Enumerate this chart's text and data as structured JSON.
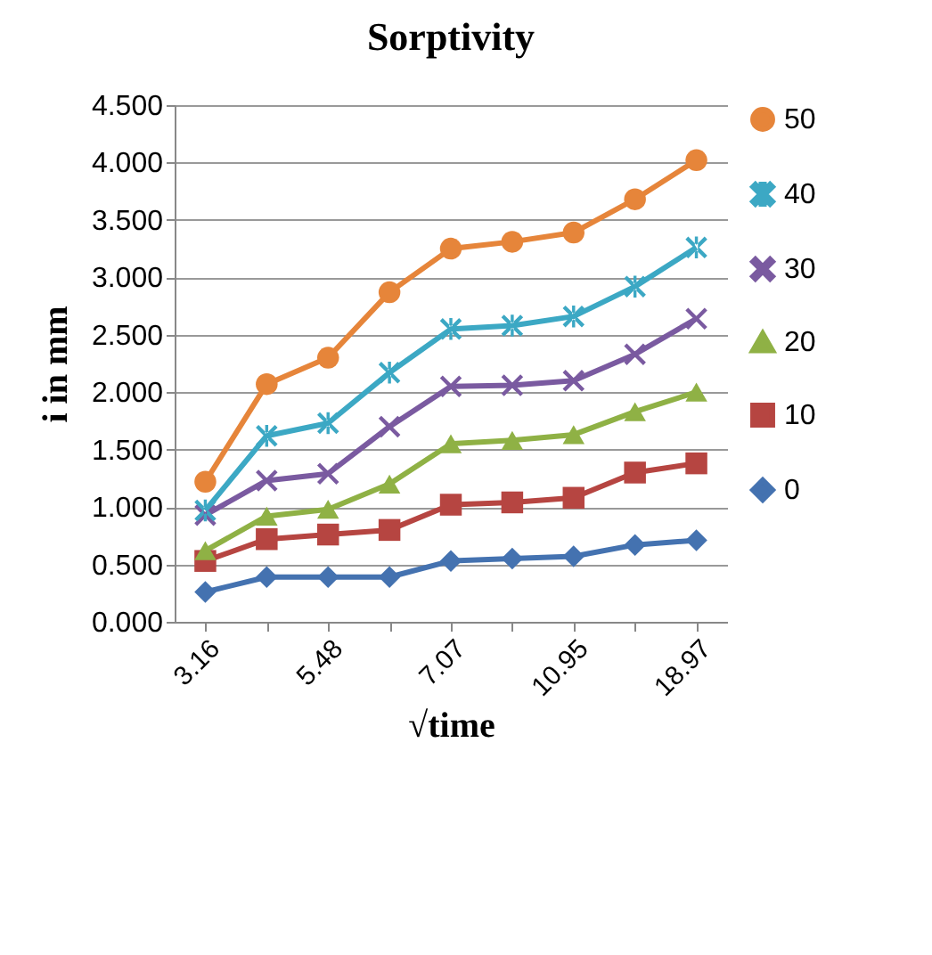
{
  "chart_data": {
    "type": "line",
    "title": "Sorptivity",
    "xlabel": "√time",
    "ylabel": "i in mm",
    "categories": [
      "3.16",
      null,
      "5.48",
      null,
      "7.07",
      null,
      "10.95",
      null,
      "18.97"
    ],
    "series": [
      {
        "name": "50",
        "color": "#e6853a",
        "marker": "circle",
        "values": [
          1.22,
          2.07,
          2.3,
          2.87,
          3.25,
          3.31,
          3.39,
          3.68,
          4.02
        ]
      },
      {
        "name": "40",
        "color": "#3ca8c4",
        "marker": "star",
        "values": [
          0.97,
          1.62,
          1.73,
          2.17,
          2.55,
          2.58,
          2.66,
          2.92,
          3.26
        ]
      },
      {
        "name": "30",
        "color": "#7a5aa0",
        "marker": "cross",
        "values": [
          0.93,
          1.23,
          1.29,
          1.7,
          2.05,
          2.06,
          2.1,
          2.33,
          2.64
        ]
      },
      {
        "name": "20",
        "color": "#8fb145",
        "marker": "triangle",
        "values": [
          0.62,
          0.92,
          0.98,
          1.2,
          1.55,
          1.58,
          1.63,
          1.83,
          2.0
        ]
      },
      {
        "name": "10",
        "color": "#b64541",
        "marker": "square",
        "values": [
          0.53,
          0.72,
          0.76,
          0.8,
          1.02,
          1.04,
          1.08,
          1.3,
          1.38
        ]
      },
      {
        "name": "0",
        "color": "#4472b0",
        "marker": "diamond",
        "values": [
          0.26,
          0.39,
          0.39,
          0.39,
          0.53,
          0.55,
          0.57,
          0.67,
          0.71
        ]
      }
    ],
    "ylim": [
      0,
      4.5
    ],
    "yticks": [
      {
        "value": 0,
        "label": "0.000"
      },
      {
        "value": 0.5,
        "label": "0.500"
      },
      {
        "value": 1,
        "label": "1.000"
      },
      {
        "value": 1.5,
        "label": "1.500"
      },
      {
        "value": 2,
        "label": "2.000"
      },
      {
        "value": 2.5,
        "label": "2.500"
      },
      {
        "value": 3,
        "label": "3.000"
      },
      {
        "value": 3.5,
        "label": "3.500"
      },
      {
        "value": 4,
        "label": "4.000"
      },
      {
        "value": 4.5,
        "label": "4.500"
      }
    ],
    "grid": "y",
    "legend": "right"
  }
}
